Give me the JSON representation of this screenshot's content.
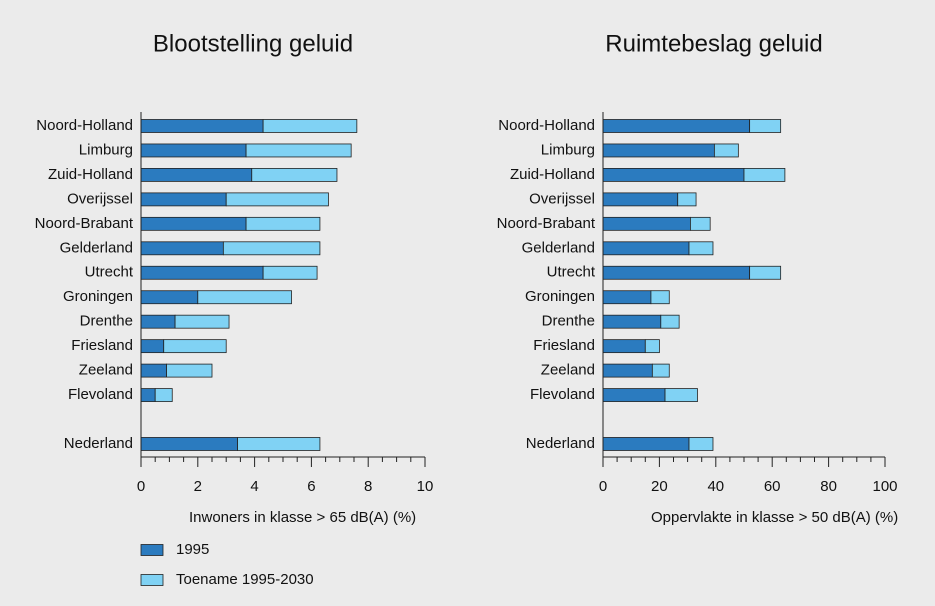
{
  "chart_data": [
    {
      "type": "barh-stacked",
      "title": "Blootstelling geluid",
      "xlabel": "Inwoners in klasse > 65 dB(A) (%)",
      "categories": [
        "Noord-Holland",
        "Limburg",
        "Zuid-Holland",
        "Overijssel",
        "Noord-Brabant",
        "Gelderland",
        "Utrecht",
        "Groningen",
        "Drenthe",
        "Friesland",
        "Zeeland",
        "Flevoland",
        null,
        "Nederland"
      ],
      "series": [
        {
          "name": "1995",
          "color": "#2b7bbf",
          "values": [
            4.3,
            3.7,
            3.9,
            3.0,
            3.7,
            2.9,
            4.3,
            2.0,
            1.2,
            0.8,
            0.9,
            0.5,
            null,
            3.4
          ]
        },
        {
          "name": "Toename 1995-2030",
          "color": "#80d2f4",
          "values": [
            3.3,
            3.7,
            3.0,
            3.6,
            2.6,
            3.4,
            1.9,
            3.3,
            1.9,
            2.2,
            1.6,
            0.6,
            null,
            2.9
          ]
        }
      ],
      "xlim": [
        0,
        10
      ],
      "xticks": [
        0,
        2,
        4,
        6,
        8,
        10
      ]
    },
    {
      "type": "barh-stacked",
      "title": "Ruimtebeslag geluid",
      "xlabel": "Oppervlakte in klasse > 50 dB(A) (%)",
      "categories": [
        "Noord-Holland",
        "Limburg",
        "Zuid-Holland",
        "Overijssel",
        "Noord-Brabant",
        "Gelderland",
        "Utrecht",
        "Groningen",
        "Drenthe",
        "Friesland",
        "Zeeland",
        "Flevoland",
        null,
        "Nederland"
      ],
      "series": [
        {
          "color": "#2b7bbf",
          "values": [
            52,
            39.5,
            50,
            26.5,
            31,
            30.5,
            52,
            17,
            20.5,
            15,
            17.5,
            22,
            null,
            30.5
          ]
        },
        {
          "color": "#80d2f4",
          "values": [
            11,
            8.5,
            14.5,
            6.5,
            7,
            8.5,
            11,
            6.5,
            6.5,
            5,
            6,
            11.5,
            null,
            8.5
          ]
        }
      ],
      "xlim": [
        0,
        100
      ],
      "xticks": [
        0,
        20,
        40,
        60,
        80,
        100
      ]
    }
  ]
}
